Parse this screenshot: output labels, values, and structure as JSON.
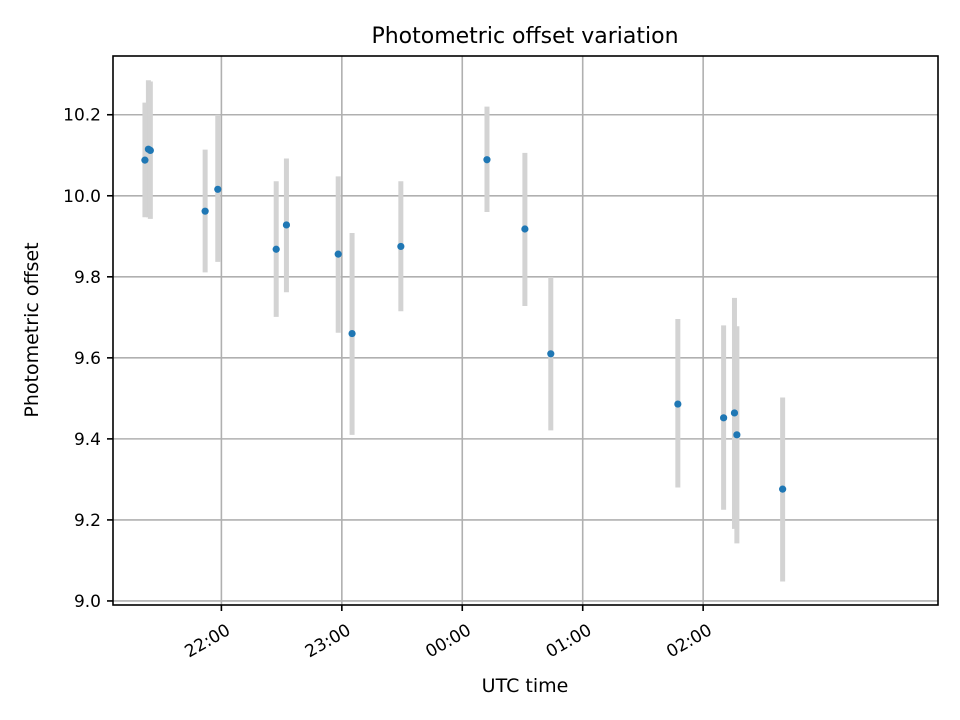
{
  "chart_data": {
    "type": "scatter",
    "title": "Photometric offset variation",
    "xlabel": "UTC time",
    "ylabel": "Photometric offset",
    "ylim": [
      8.99,
      10.345
    ],
    "xlim_hours": [
      21.1,
      27.95
    ],
    "y_ticks": [
      {
        "value": 9.0,
        "label": "9.0"
      },
      {
        "value": 9.2,
        "label": "9.2"
      },
      {
        "value": 9.4,
        "label": "9.4"
      },
      {
        "value": 9.6,
        "label": "9.6"
      },
      {
        "value": 9.8,
        "label": "9.8"
      },
      {
        "value": 10.0,
        "label": "10.0"
      },
      {
        "value": 10.2,
        "label": "10.2"
      }
    ],
    "x_ticks": [
      {
        "value": 22,
        "label": "22:00"
      },
      {
        "value": 23,
        "label": "23:00"
      },
      {
        "value": 24,
        "label": "00:00"
      },
      {
        "value": 25,
        "label": "01:00"
      },
      {
        "value": 26,
        "label": "02:00"
      }
    ],
    "grid": true,
    "points": [
      {
        "time": "21:22",
        "x": 21.365,
        "y": 10.088,
        "err_low": 9.947,
        "err_high": 10.23
      },
      {
        "time": "21:24",
        "x": 21.394,
        "y": 10.115,
        "err_low": 9.947,
        "err_high": 10.285
      },
      {
        "time": "21:24",
        "x": 21.41,
        "y": 10.112,
        "err_low": 9.943,
        "err_high": 10.282
      },
      {
        "time": "21:52",
        "x": 21.865,
        "y": 9.962,
        "err_low": 9.811,
        "err_high": 10.114
      },
      {
        "time": "21:58",
        "x": 21.97,
        "y": 10.016,
        "err_low": 9.837,
        "err_high": 10.2
      },
      {
        "time": "22:27",
        "x": 22.455,
        "y": 9.868,
        "err_low": 9.701,
        "err_high": 10.036
      },
      {
        "time": "22:32",
        "x": 22.54,
        "y": 9.928,
        "err_low": 9.762,
        "err_high": 10.092
      },
      {
        "time": "22:58",
        "x": 22.97,
        "y": 9.856,
        "err_low": 9.662,
        "err_high": 10.048
      },
      {
        "time": "23:05",
        "x": 23.085,
        "y": 9.66,
        "err_low": 9.41,
        "err_high": 9.908
      },
      {
        "time": "23:29",
        "x": 23.49,
        "y": 9.875,
        "err_low": 9.715,
        "err_high": 10.036
      },
      {
        "time": "00:12",
        "x": 24.205,
        "y": 10.089,
        "err_low": 9.96,
        "err_high": 10.22
      },
      {
        "time": "00:31",
        "x": 24.52,
        "y": 9.918,
        "err_low": 9.728,
        "err_high": 10.106
      },
      {
        "time": "00:44",
        "x": 24.735,
        "y": 9.61,
        "err_low": 9.421,
        "err_high": 9.8
      },
      {
        "time": "01:47",
        "x": 25.79,
        "y": 9.486,
        "err_low": 9.28,
        "err_high": 9.696
      },
      {
        "time": "02:10",
        "x": 26.17,
        "y": 9.452,
        "err_low": 9.225,
        "err_high": 9.68
      },
      {
        "time": "02:15",
        "x": 26.26,
        "y": 9.464,
        "err_low": 9.178,
        "err_high": 9.748
      },
      {
        "time": "02:17",
        "x": 26.28,
        "y": 9.41,
        "err_low": 9.142,
        "err_high": 9.678
      },
      {
        "time": "02:39",
        "x": 26.66,
        "y": 9.276,
        "err_low": 9.048,
        "err_high": 9.502
      }
    ],
    "colors": {
      "marker": "#1f77b4",
      "errorbar": "#d3d3d3",
      "grid": "#b0b0b0"
    }
  }
}
